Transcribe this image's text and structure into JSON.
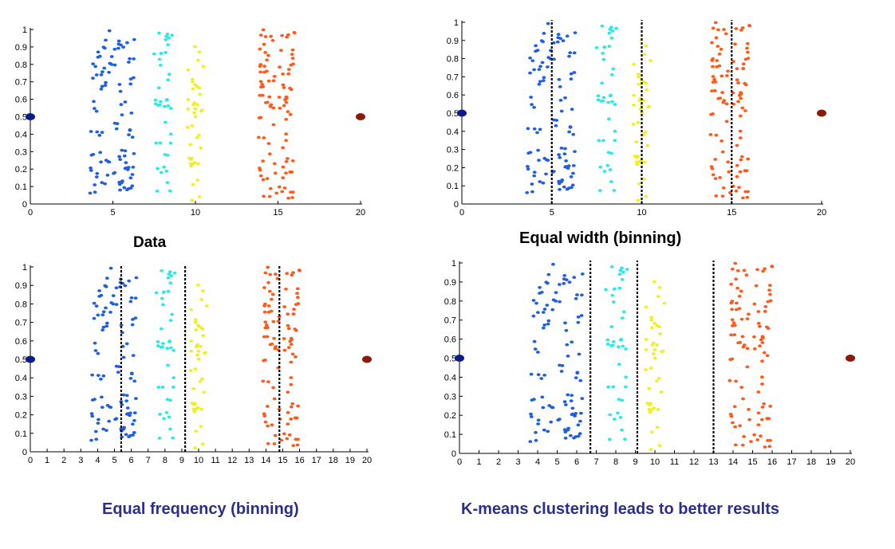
{
  "figure": {
    "captions": [
      {
        "text": "Data"
      },
      {
        "text": "Equal width (binning)"
      },
      {
        "text": "Equal frequency (binning)"
      },
      {
        "text": "K-means clustering leads to better results"
      }
    ],
    "colors": {
      "caption_black": "#000000",
      "caption_blue": "#2b2f8a",
      "cluster_blue": "#1f5fe0",
      "cluster_cyan": "#2ee8e8",
      "cluster_yellow": "#f0f020",
      "cluster_orange": "#ff5a1a",
      "outlier_left": "#0a1a8c",
      "outlier_right": "#8c1a0a",
      "bin_boundary": "#000000"
    }
  },
  "chart_data": [
    {
      "type": "scatter",
      "title": "Data",
      "xlim": [
        0,
        20
      ],
      "ylim": [
        0,
        1
      ],
      "x_ticks": [
        0,
        5,
        10,
        15,
        20
      ],
      "y_ticks": [
        0,
        0.1,
        0.2,
        0.3,
        0.4,
        0.5,
        0.6,
        0.7,
        0.8,
        0.9,
        1
      ],
      "clusters": [
        {
          "color": "blue",
          "x_range": [
            3.6,
            6.3
          ],
          "y_range": [
            0.05,
            1.0
          ],
          "count": 100
        },
        {
          "color": "cyan",
          "x_range": [
            7.4,
            8.6
          ],
          "y_range": [
            0.01,
            0.98
          ],
          "count": 40
        },
        {
          "color": "yellow",
          "x_range": [
            9.5,
            10.5
          ],
          "y_range": [
            0.01,
            0.91
          ],
          "count": 40
        },
        {
          "color": "orange",
          "x_range": [
            13.8,
            16.0
          ],
          "y_range": [
            0.02,
            1.0
          ],
          "count": 100
        }
      ],
      "outliers": [
        {
          "x": 0,
          "y": 0.5,
          "color": "navy"
        },
        {
          "x": 20,
          "y": 0.5,
          "color": "darkred"
        }
      ],
      "boundaries": []
    },
    {
      "type": "scatter",
      "title": "Equal width (binning)",
      "xlim": [
        0,
        20
      ],
      "ylim": [
        0,
        1
      ],
      "x_ticks": [
        0,
        5,
        10,
        15,
        20
      ],
      "y_ticks": [
        0,
        0.1,
        0.2,
        0.3,
        0.4,
        0.5,
        0.6,
        0.7,
        0.8,
        0.9,
        1
      ],
      "clusters": [
        {
          "color": "blue",
          "x_range": [
            3.6,
            6.3
          ],
          "y_range": [
            0.05,
            1.0
          ],
          "count": 100
        },
        {
          "color": "cyan",
          "x_range": [
            7.4,
            8.6
          ],
          "y_range": [
            0.01,
            0.98
          ],
          "count": 40
        },
        {
          "color": "yellow",
          "x_range": [
            9.5,
            10.5
          ],
          "y_range": [
            0.01,
            0.91
          ],
          "count": 40
        },
        {
          "color": "orange",
          "x_range": [
            13.8,
            16.0
          ],
          "y_range": [
            0.02,
            1.0
          ],
          "count": 100
        }
      ],
      "outliers": [
        {
          "x": 0,
          "y": 0.5,
          "color": "navy"
        },
        {
          "x": 20,
          "y": 0.5,
          "color": "darkred"
        }
      ],
      "boundaries": [
        5,
        10,
        15
      ]
    },
    {
      "type": "scatter",
      "title": "Equal frequency (binning)",
      "xlim": [
        0,
        20
      ],
      "ylim": [
        0,
        1
      ],
      "x_ticks": [
        0,
        1,
        2,
        3,
        4,
        5,
        6,
        7,
        8,
        9,
        10,
        11,
        12,
        13,
        14,
        15,
        16,
        17,
        18,
        19,
        20
      ],
      "y_ticks": [
        0,
        0.1,
        0.2,
        0.3,
        0.4,
        0.5,
        0.6,
        0.7,
        0.8,
        0.9,
        1
      ],
      "clusters": [
        {
          "color": "blue",
          "x_range": [
            3.6,
            6.3
          ],
          "y_range": [
            0.05,
            1.0
          ],
          "count": 100
        },
        {
          "color": "cyan",
          "x_range": [
            7.4,
            8.6
          ],
          "y_range": [
            0.01,
            0.98
          ],
          "count": 40
        },
        {
          "color": "yellow",
          "x_range": [
            9.5,
            10.5
          ],
          "y_range": [
            0.01,
            0.91
          ],
          "count": 40
        },
        {
          "color": "orange",
          "x_range": [
            13.8,
            16.0
          ],
          "y_range": [
            0.02,
            1.0
          ],
          "count": 100
        }
      ],
      "outliers": [
        {
          "x": 0,
          "y": 0.5,
          "color": "navy"
        },
        {
          "x": 20,
          "y": 0.5,
          "color": "darkred"
        }
      ],
      "boundaries": [
        5.4,
        9.2,
        14.8
      ]
    },
    {
      "type": "scatter",
      "title": "K-means clustering leads to better results",
      "xlim": [
        0,
        20
      ],
      "ylim": [
        0,
        1
      ],
      "x_ticks": [
        0,
        1,
        2,
        3,
        4,
        5,
        6,
        7,
        8,
        9,
        10,
        11,
        12,
        13,
        14,
        15,
        16,
        17,
        18,
        19,
        20
      ],
      "y_ticks": [
        0,
        0.1,
        0.2,
        0.3,
        0.4,
        0.5,
        0.6,
        0.7,
        0.8,
        0.9,
        1
      ],
      "clusters": [
        {
          "color": "blue",
          "x_range": [
            3.6,
            6.3
          ],
          "y_range": [
            0.05,
            1.0
          ],
          "count": 100
        },
        {
          "color": "cyan",
          "x_range": [
            7.4,
            8.6
          ],
          "y_range": [
            0.01,
            0.98
          ],
          "count": 40
        },
        {
          "color": "yellow",
          "x_range": [
            9.5,
            10.5
          ],
          "y_range": [
            0.01,
            0.91
          ],
          "count": 40
        },
        {
          "color": "orange",
          "x_range": [
            13.8,
            16.0
          ],
          "y_range": [
            0.02,
            1.0
          ],
          "count": 100
        }
      ],
      "outliers": [
        {
          "x": 0,
          "y": 0.5,
          "color": "navy"
        },
        {
          "x": 20,
          "y": 0.5,
          "color": "darkred"
        }
      ],
      "boundaries": [
        6.7,
        9.1,
        13
      ]
    }
  ]
}
